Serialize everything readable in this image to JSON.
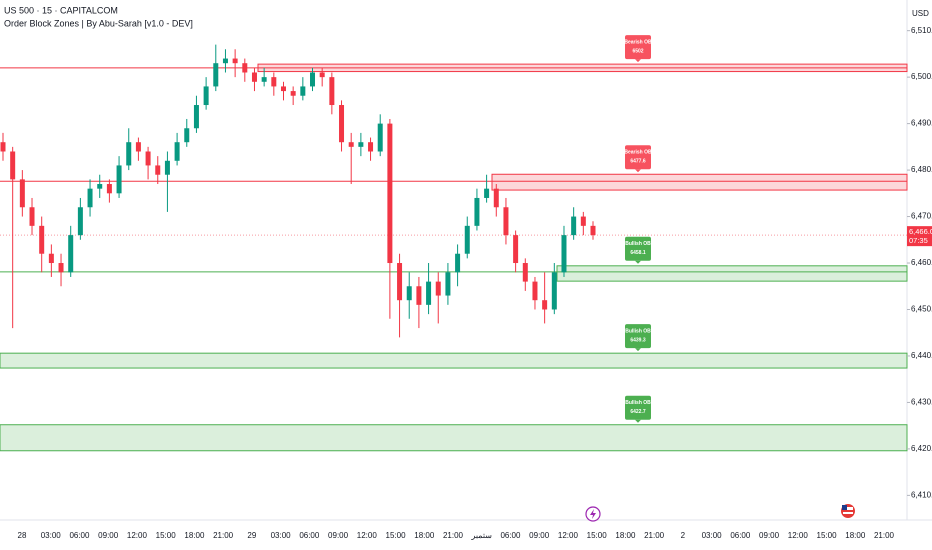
{
  "chart_data": {
    "type": "candlestick",
    "title": "US 500 · 15 · CAPITALCOM",
    "subtitle": "Order Block Zones | By Abu-Sarah [v1.0 - DEV]",
    "currency": "USD",
    "up_color": "#089981",
    "down_color": "#f23645",
    "ylim": [
      6404.7,
      6516.6
    ],
    "yticks": [
      {
        "value": 6410,
        "label": "6,410.0"
      },
      {
        "value": 6420,
        "label": "6,420.0"
      },
      {
        "value": 6430,
        "label": "6,430.0"
      },
      {
        "value": 6440,
        "label": "6,440.0"
      },
      {
        "value": 6450,
        "label": "6,450.0"
      },
      {
        "value": 6460,
        "label": "6,460.0"
      },
      {
        "value": 6470,
        "label": "6,470.0"
      },
      {
        "value": 6480,
        "label": "6,480.0"
      },
      {
        "value": 6490,
        "label": "6,490.0"
      },
      {
        "value": 6500,
        "label": "6,500.0"
      },
      {
        "value": 6510,
        "label": "6,510.0"
      }
    ],
    "categories": [
      "28",
      "03:00",
      "06:00",
      "09:00",
      "12:00",
      "15:00",
      "18:00",
      "21:00",
      "29",
      "03:00",
      "06:00",
      "09:00",
      "12:00",
      "15:00",
      "18:00",
      "21:00",
      "ستمبر",
      "06:00",
      "09:00",
      "12:00",
      "15:00",
      "18:00",
      "21:00",
      "2",
      "03:00",
      "06:00",
      "09:00",
      "12:00",
      "15:00",
      "18:00",
      "21:00"
    ],
    "candles": [
      [
        6486,
        6488,
        6482,
        6484
      ],
      [
        6484,
        6485,
        6446,
        6478
      ],
      [
        6478,
        6480,
        6470,
        6472
      ],
      [
        6472,
        6474,
        6466,
        6468
      ],
      [
        6468,
        6470,
        6458,
        6462
      ],
      [
        6462,
        6464,
        6457,
        6460
      ],
      [
        6460,
        6462,
        6455,
        6458
      ],
      [
        6458,
        6468,
        6457,
        6466
      ],
      [
        6466,
        6474,
        6465,
        6472
      ],
      [
        6472,
        6478,
        6470,
        6476
      ],
      [
        6476,
        6479,
        6474,
        6477
      ],
      [
        6477,
        6478,
        6473,
        6475
      ],
      [
        6475,
        6483,
        6474,
        6481
      ],
      [
        6481,
        6489,
        6480,
        6486
      ],
      [
        6486,
        6487,
        6482,
        6484
      ],
      [
        6484,
        6485,
        6478,
        6481
      ],
      [
        6481,
        6483,
        6477,
        6479
      ],
      [
        6479,
        6484,
        6471,
        6482
      ],
      [
        6482,
        6488,
        6481,
        6486
      ],
      [
        6486,
        6491,
        6485,
        6489
      ],
      [
        6489,
        6496,
        6488,
        6494
      ],
      [
        6494,
        6500,
        6493,
        6498
      ],
      [
        6498,
        6507,
        6497,
        6503
      ],
      [
        6503,
        6506,
        6501,
        6504
      ],
      [
        6504,
        6506,
        6500,
        6503
      ],
      [
        6503,
        6504,
        6499,
        6501
      ],
      [
        6501,
        6502,
        6497,
        6499
      ],
      [
        6499,
        6502,
        6498,
        6500
      ],
      [
        6500,
        6501,
        6496,
        6498
      ],
      [
        6498,
        6499,
        6495,
        6497
      ],
      [
        6497,
        6498,
        6494,
        6496
      ],
      [
        6496,
        6500,
        6495,
        6498
      ],
      [
        6498,
        6502,
        6497,
        6501
      ],
      [
        6501,
        6502,
        6498,
        6500
      ],
      [
        6500,
        6501,
        6492,
        6494
      ],
      [
        6494,
        6495,
        6484,
        6486
      ],
      [
        6486,
        6488,
        6477,
        6485
      ],
      [
        6485,
        6488,
        6483,
        6486
      ],
      [
        6486,
        6487,
        6482,
        6484
      ],
      [
        6484,
        6492,
        6483,
        6490
      ],
      [
        6490,
        6491,
        6448,
        6460
      ],
      [
        6460,
        6462,
        6444,
        6452
      ],
      [
        6452,
        6458,
        6448,
        6455
      ],
      [
        6455,
        6457,
        6446,
        6451
      ],
      [
        6451,
        6460,
        6449,
        6456
      ],
      [
        6456,
        6458,
        6447,
        6453
      ],
      [
        6453,
        6460,
        6451,
        6458
      ],
      [
        6458,
        6464,
        6455,
        6462
      ],
      [
        6462,
        6470,
        6461,
        6468
      ],
      [
        6468,
        6476,
        6467,
        6474
      ],
      [
        6474,
        6479,
        6473,
        6476
      ],
      [
        6476,
        6477,
        6470,
        6472
      ],
      [
        6472,
        6474,
        6464,
        6466
      ],
      [
        6466,
        6467,
        6458,
        6460
      ],
      [
        6460,
        6461,
        6454,
        6456
      ],
      [
        6456,
        6457,
        6450,
        6452
      ],
      [
        6452,
        6458,
        6447,
        6450
      ],
      [
        6450,
        6460,
        6449,
        6458
      ],
      [
        6458,
        6468,
        6457,
        6466
      ],
      [
        6466,
        6472,
        6465,
        6470
      ],
      [
        6470,
        6471,
        6466,
        6468
      ],
      [
        6468,
        6469,
        6465,
        6466
      ]
    ],
    "last_price": {
      "value": 6466,
      "label": "6,466.0"
    },
    "countdown": "07:35",
    "order_blocks": [
      {
        "label": "Bearish OB",
        "level": 6502,
        "top": 6502.8,
        "bottom": 6501.2,
        "color": "#f7525f"
      },
      {
        "label": "Bearish OB",
        "level": 6477.6,
        "top": 6479.1,
        "bottom": 6475.7,
        "color": "#f7525f"
      },
      {
        "label": "Bullish OB",
        "level": 6458.1,
        "top": 6459.4,
        "bottom": 6456.1,
        "color": "#4caf50"
      },
      {
        "label": "Bullish OB",
        "level": 6439.3,
        "top": 6440.6,
        "bottom": 6437.4,
        "color": "#4caf50"
      },
      {
        "label": "Bullish OB",
        "level": 6422.7,
        "top": 6425.2,
        "bottom": 6419.6,
        "color": "#4caf50"
      }
    ]
  }
}
